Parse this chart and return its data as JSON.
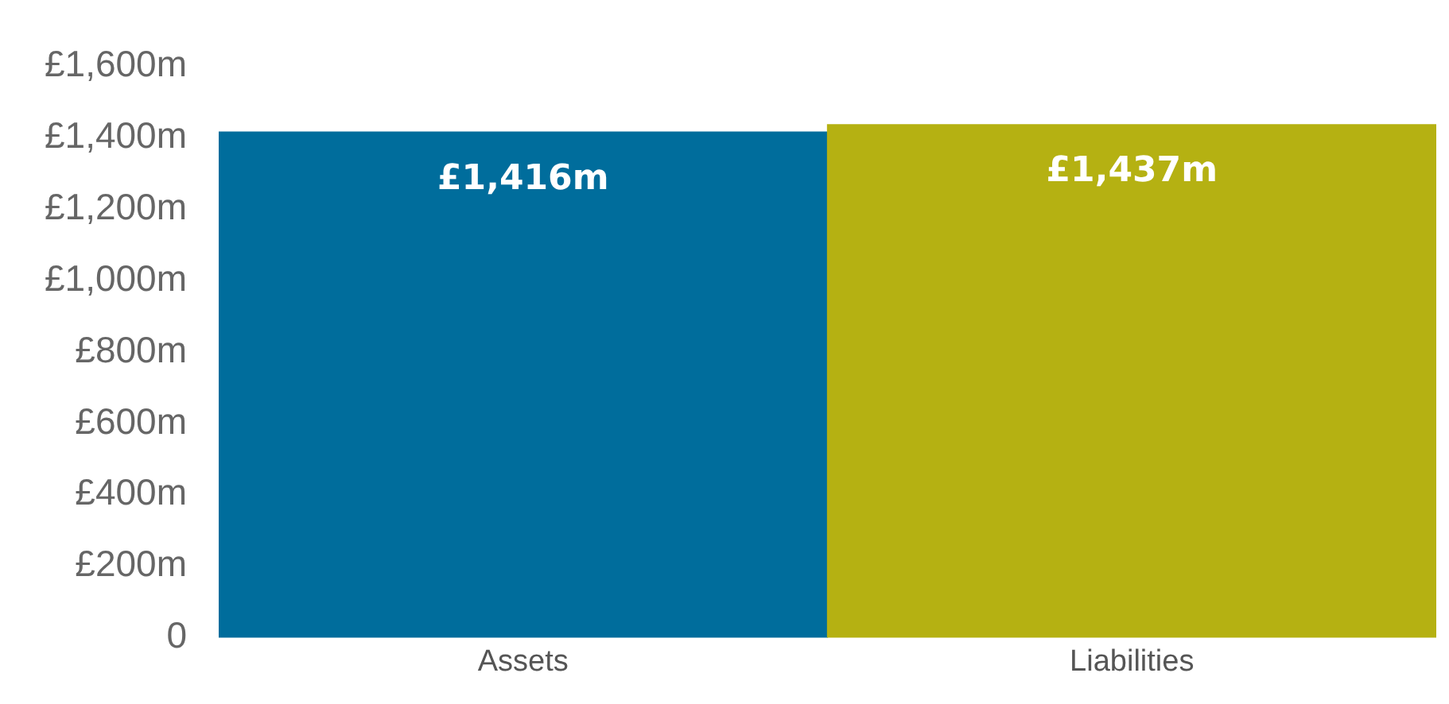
{
  "chart_data": {
    "type": "bar",
    "categories": [
      "Assets",
      "Liabilities"
    ],
    "values": [
      1416,
      1437
    ],
    "colors": [
      "#006d9c",
      "#b5b112"
    ],
    "value_labels": [
      "£1,416m",
      "£1,437m"
    ],
    "ylim": [
      0,
      1600
    ],
    "yticks": [
      0,
      {
        "value": 200,
        "label": "£200m"
      },
      {
        "value": 400,
        "label": "£400m"
      },
      {
        "value": 600,
        "label": "£600m"
      },
      {
        "value": 800,
        "label": "£800m"
      },
      {
        "value": 1000,
        "label": "£1,000m"
      },
      {
        "value": 1200,
        "label": "£1,200m"
      },
      {
        "value": 1400,
        "label": "£1,400m"
      },
      {
        "value": 1600,
        "label": "£1,600m"
      }
    ],
    "grid": false,
    "legend": false
  }
}
